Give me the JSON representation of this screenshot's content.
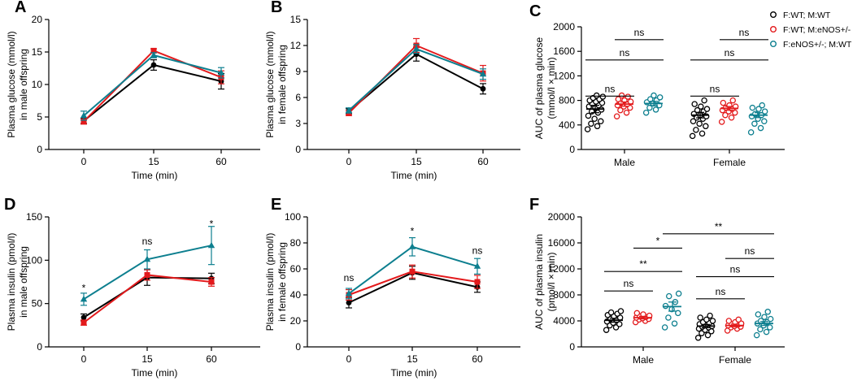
{
  "colors": {
    "wt": "#000000",
    "enos_father": "#e31a1c",
    "enos_mother": "#0d7f8f"
  },
  "legend": [
    {
      "key": "wt",
      "label": "F:WT; M:WT"
    },
    {
      "key": "enos_father",
      "label": "F:WT; M:eNOS+/-"
    },
    {
      "key": "enos_mother",
      "label": "F:eNOS+/-; M:WT"
    }
  ],
  "chart_data": [
    {
      "panel": "A",
      "type": "line",
      "xlabel": "Time (min)",
      "ylabel": [
        "Plasma glucose (mmol/l)",
        "in male offspring"
      ],
      "categories": [
        "0",
        "15",
        "60"
      ],
      "ylim": [
        0,
        20
      ],
      "yticks": [
        0,
        5,
        10,
        15,
        20
      ],
      "series": [
        {
          "key": "wt",
          "marker": "circle",
          "values": [
            4.4,
            13.0,
            10.5
          ],
          "err": [
            0.4,
            0.8,
            1.2
          ]
        },
        {
          "key": "enos_father",
          "marker": "square",
          "values": [
            4.3,
            15.2,
            11.1
          ],
          "err": [
            0.4,
            0.3,
            1.0
          ]
        },
        {
          "key": "enos_mother",
          "marker": "triangle",
          "values": [
            5.2,
            14.5,
            11.8
          ],
          "err": [
            0.7,
            0.4,
            0.8
          ]
        }
      ],
      "annotations": []
    },
    {
      "panel": "B",
      "type": "line",
      "xlabel": "Time (min)",
      "ylabel": [
        "Plasma glucose (mmol/l)",
        "in female offspring"
      ],
      "categories": [
        "0",
        "15",
        "60"
      ],
      "ylim": [
        0,
        15
      ],
      "yticks": [
        0,
        3,
        6,
        9,
        12,
        15
      ],
      "series": [
        {
          "key": "wt",
          "marker": "circle",
          "values": [
            4.4,
            11.0,
            7.0
          ],
          "err": [
            0.3,
            0.8,
            0.6
          ]
        },
        {
          "key": "enos_father",
          "marker": "square",
          "values": [
            4.2,
            12.0,
            8.8
          ],
          "err": [
            0.3,
            0.8,
            0.9
          ]
        },
        {
          "key": "enos_mother",
          "marker": "triangle",
          "values": [
            4.5,
            11.6,
            8.7
          ],
          "err": [
            0.3,
            0.5,
            0.6
          ]
        }
      ],
      "annotations": []
    },
    {
      "panel": "C",
      "type": "scatter",
      "ylabel": [
        "AUC of plasma glucose",
        "(mmol/l × min)"
      ],
      "categories": [
        "Male",
        "Female"
      ],
      "ylim": [
        0,
        2000
      ],
      "yticks": [
        0,
        400,
        800,
        1200,
        1600,
        2000
      ],
      "groups": [
        {
          "category": "Male",
          "key": "wt",
          "mean": 660,
          "sem": 60,
          "points": [
            330,
            380,
            420,
            460,
            500,
            550,
            600,
            620,
            650,
            680,
            700,
            720,
            740,
            760,
            780,
            800,
            820,
            840,
            860,
            880
          ]
        },
        {
          "category": "Male",
          "key": "enos_father",
          "mean": 740,
          "sem": 35,
          "points": [
            540,
            600,
            640,
            680,
            700,
            720,
            740,
            760,
            780,
            800,
            820,
            860,
            880
          ]
        },
        {
          "category": "Male",
          "key": "enos_mother",
          "mean": 750,
          "sem": 35,
          "points": [
            600,
            650,
            680,
            720,
            750,
            770,
            800,
            820,
            850,
            880
          ]
        },
        {
          "category": "Female",
          "key": "wt",
          "mean": 560,
          "sem": 45,
          "points": [
            220,
            260,
            320,
            380,
            420,
            460,
            500,
            520,
            540,
            560,
            580,
            620,
            640,
            660,
            700,
            740,
            800
          ]
        },
        {
          "category": "Female",
          "key": "enos_father",
          "mean": 670,
          "sem": 30,
          "points": [
            450,
            520,
            560,
            600,
            620,
            640,
            660,
            680,
            700,
            720,
            760,
            800
          ]
        },
        {
          "category": "Female",
          "key": "enos_mother",
          "mean": 560,
          "sem": 40,
          "points": [
            280,
            350,
            420,
            460,
            500,
            540,
            560,
            580,
            620,
            660,
            680,
            720
          ]
        }
      ],
      "brackets": [
        {
          "from": 0,
          "to": 1,
          "level": 870,
          "label": "ns"
        },
        {
          "from": 0,
          "to": 2,
          "level": 1460,
          "label": "ns"
        },
        {
          "from": 1,
          "to": 2,
          "level": 1790,
          "label": "ns"
        },
        {
          "from": 3,
          "to": 4,
          "level": 870,
          "label": "ns"
        },
        {
          "from": 3,
          "to": 5,
          "level": 1460,
          "label": "ns"
        },
        {
          "from": 4,
          "to": 5,
          "level": 1790,
          "label": "ns"
        }
      ]
    },
    {
      "panel": "D",
      "type": "line",
      "xlabel": "Time (min)",
      "ylabel": [
        "Plasma insulin (pmol/l)",
        "in male offspring"
      ],
      "categories": [
        "0",
        "15",
        "60"
      ],
      "ylim": [
        0,
        150
      ],
      "yticks": [
        0,
        50,
        100,
        150
      ],
      "series": [
        {
          "key": "wt",
          "marker": "circle",
          "values": [
            34,
            80,
            79
          ],
          "err": [
            4,
            9,
            6
          ]
        },
        {
          "key": "enos_father",
          "marker": "square",
          "values": [
            28,
            83,
            75
          ],
          "err": [
            3,
            6,
            5
          ]
        },
        {
          "key": "enos_mother",
          "marker": "triangle",
          "values": [
            55,
            101,
            117
          ],
          "err": [
            7,
            11,
            22
          ]
        }
      ],
      "annotations": [
        {
          "index": 0,
          "value": 68,
          "label": "*"
        },
        {
          "index": 1,
          "value": 122,
          "label": "ns"
        },
        {
          "index": 2,
          "value": 142,
          "label": "*"
        }
      ]
    },
    {
      "panel": "E",
      "type": "line",
      "xlabel": "Time (min)",
      "ylabel": [
        "Plasma insulin (pmol/l)",
        "in female offspring"
      ],
      "categories": [
        "0",
        "15",
        "60"
      ],
      "ylim": [
        0,
        100
      ],
      "yticks": [
        0,
        20,
        40,
        60,
        80,
        100
      ],
      "series": [
        {
          "key": "wt",
          "marker": "circle",
          "values": [
            34,
            57,
            46
          ],
          "err": [
            4,
            5,
            4
          ]
        },
        {
          "key": "enos_father",
          "marker": "square",
          "values": [
            40,
            58,
            50
          ],
          "err": [
            4,
            5,
            5
          ]
        },
        {
          "key": "enos_mother",
          "marker": "triangle",
          "values": [
            41,
            77,
            62
          ],
          "err": [
            4,
            7,
            6
          ]
        }
      ],
      "annotations": [
        {
          "index": 0,
          "value": 53,
          "label": "ns"
        },
        {
          "index": 1,
          "value": 89,
          "label": "*"
        },
        {
          "index": 2,
          "value": 74,
          "label": "ns"
        }
      ]
    },
    {
      "panel": "F",
      "type": "scatter",
      "ylabel": [
        "AUC of plasma insulin",
        "(pmol/l × min)"
      ],
      "categories": [
        "Male",
        "Female"
      ],
      "ylim": [
        0,
        20000
      ],
      "yticks": [
        0,
        4000,
        8000,
        12000,
        16000,
        20000
      ],
      "groups": [
        {
          "category": "Male",
          "key": "wt",
          "mean": 4100,
          "sem": 300,
          "points": [
            2600,
            3000,
            3300,
            3500,
            3700,
            3900,
            4100,
            4300,
            4500,
            4700,
            4900,
            5100,
            5300,
            5500
          ]
        },
        {
          "category": "Male",
          "key": "enos_father",
          "mean": 4500,
          "sem": 200,
          "points": [
            3800,
            4000,
            4200,
            4300,
            4400,
            4500,
            4600,
            4700,
            4800,
            5000,
            5200
          ]
        },
        {
          "category": "Male",
          "key": "enos_mother",
          "mean": 6200,
          "sem": 700,
          "points": [
            3000,
            3600,
            4500,
            5200,
            5800,
            6300,
            6900,
            7800,
            8200
          ]
        },
        {
          "category": "Female",
          "key": "wt",
          "mean": 3200,
          "sem": 250,
          "points": [
            1400,
            1800,
            2100,
            2400,
            2600,
            2800,
            3000,
            3100,
            3200,
            3300,
            3500,
            3700,
            3800,
            4000,
            4200,
            4500,
            4800
          ]
        },
        {
          "category": "Female",
          "key": "enos_father",
          "mean": 3300,
          "sem": 200,
          "points": [
            2500,
            2800,
            3000,
            3100,
            3200,
            3300,
            3400,
            3500,
            3600,
            3800,
            4000,
            4200
          ]
        },
        {
          "category": "Female",
          "key": "enos_mother",
          "mean": 3600,
          "sem": 300,
          "points": [
            1800,
            2300,
            2700,
            3000,
            3300,
            3600,
            3800,
            4000,
            4300,
            4600,
            5000,
            5400
          ]
        }
      ],
      "brackets": [
        {
          "from": 0,
          "to": 1,
          "level": 8600,
          "label": "ns"
        },
        {
          "from": 0,
          "to": 2,
          "level": 11600,
          "label": "**"
        },
        {
          "from": 1,
          "to": 2,
          "level": 15200,
          "label": "*"
        },
        {
          "from": 2,
          "to": 5,
          "level": 17400,
          "label": "**"
        },
        {
          "from": 3,
          "to": 4,
          "level": 7400,
          "label": "ns"
        },
        {
          "from": 3,
          "to": 5,
          "level": 10800,
          "label": "ns"
        },
        {
          "from": 4,
          "to": 5,
          "level": 13600,
          "label": "ns"
        }
      ]
    }
  ]
}
